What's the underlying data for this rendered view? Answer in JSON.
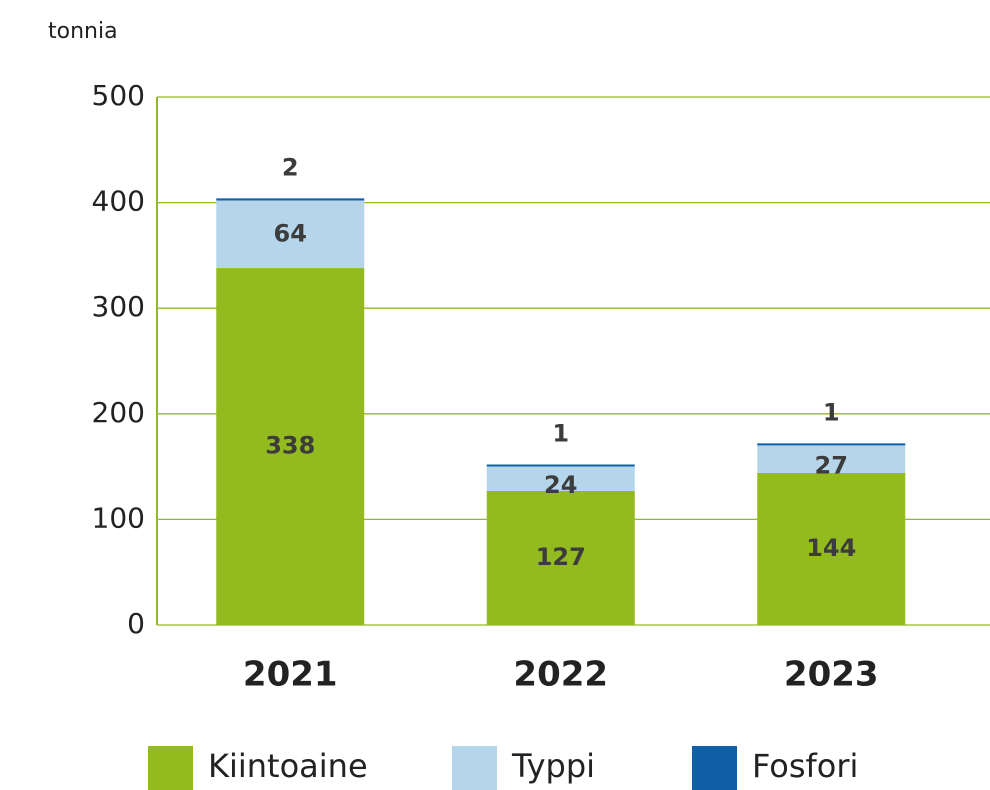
{
  "chart_data": {
    "type": "stacked_bar",
    "y_axis_label": "tonnia",
    "categories": [
      "2021",
      "2022",
      "2023"
    ],
    "series": [
      {
        "name": "Kiintoaine",
        "color": "#93ba1f",
        "values": [
          338,
          127,
          144
        ]
      },
      {
        "name": "Typpi",
        "color": "#b5d5ea",
        "values": [
          64,
          24,
          27
        ]
      },
      {
        "name": "Fosfori",
        "color": "#1060a8",
        "values": [
          2,
          1,
          1
        ]
      }
    ],
    "ylim": [
      0,
      500
    ],
    "yticks": [
      0,
      100,
      200,
      300,
      400,
      500
    ],
    "grid": true,
    "legend": "bottom"
  }
}
